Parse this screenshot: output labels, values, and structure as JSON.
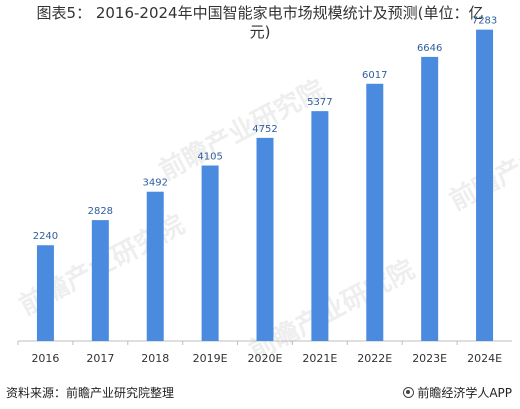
{
  "title": {
    "line1": "图表5： 2016-2024年中国智能家电市场规模统计及预测(单位：亿",
    "line2": "元)"
  },
  "footer": {
    "source": "资料来源：前瞻产业研究院整理",
    "brand": "前瞻经济学人APP"
  },
  "watermark": {
    "text": "前瞻产业研究院"
  },
  "colors": {
    "bar": "#4a8be0",
    "label": "#2e5f9e",
    "axis": "#bfbfbf",
    "tick_text": "#333333"
  },
  "chart_data": {
    "type": "bar",
    "categories": [
      "2016",
      "2017",
      "2018",
      "2019E",
      "2020E",
      "2021E",
      "2022E",
      "2023E",
      "2024E"
    ],
    "values": [
      2240,
      2828,
      3492,
      4105,
      4752,
      5377,
      6017,
      6646,
      7283
    ],
    "data_labels": [
      "2240",
      "2828",
      "3492",
      "4105",
      "4752",
      "5377",
      "6017",
      "6646",
      "7283"
    ],
    "title": "图表5： 2016-2024年中国智能家电市场规模统计及预测(单位：亿元)",
    "xlabel": "",
    "ylabel": "",
    "ylim": [
      0,
      8000
    ],
    "grid": false,
    "legend": "none"
  }
}
